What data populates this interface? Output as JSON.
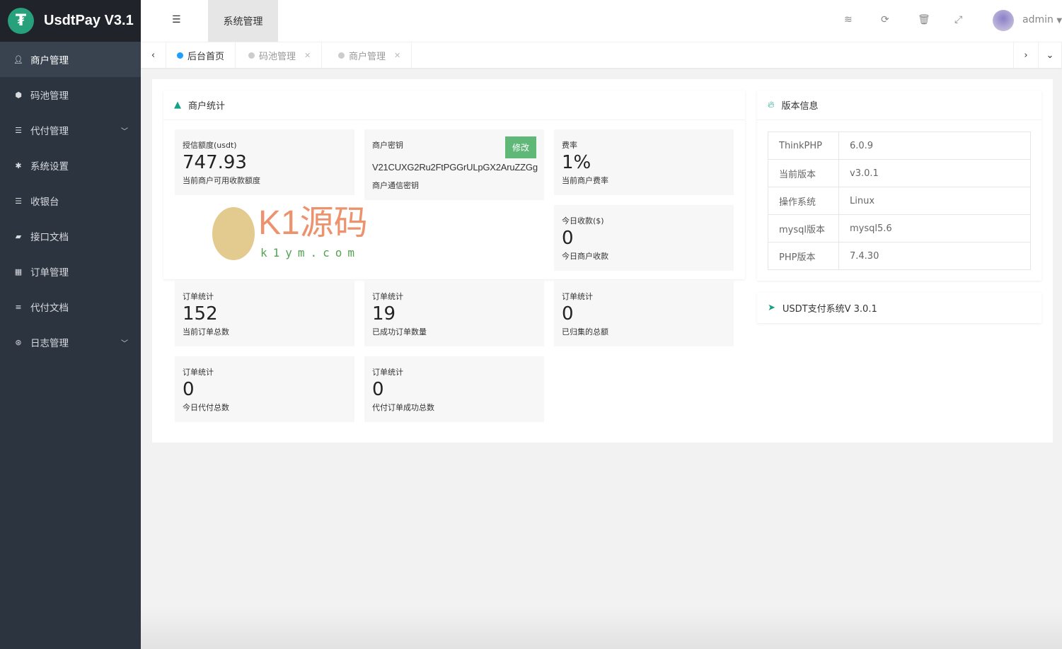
{
  "app": {
    "title": "UsdtPay V3.1",
    "logo_icon": "tether-icon"
  },
  "watermark": {
    "text": "K1源码",
    "url": "k1ym.com"
  },
  "sidebar": {
    "items": [
      {
        "label": "商户管理",
        "icon": "user-icon",
        "active": true
      },
      {
        "label": "码池管理",
        "icon": "android-icon"
      },
      {
        "label": "代付管理",
        "icon": "list-icon",
        "expandable": true
      },
      {
        "label": "系统设置",
        "icon": "gear-icon"
      },
      {
        "label": "收银台",
        "icon": "list-icon"
      },
      {
        "label": "接口文档",
        "icon": "book-icon"
      },
      {
        "label": "订单管理",
        "icon": "calculator-icon"
      },
      {
        "label": "代付文档",
        "icon": "align-icon"
      },
      {
        "label": "日志管理",
        "icon": "globe-icon",
        "expandable": true
      }
    ]
  },
  "header": {
    "system_tab": "系统管理",
    "user": "admin"
  },
  "tabs": [
    {
      "label": "后台首页",
      "active": true
    },
    {
      "label": "码池管理"
    },
    {
      "label": "商户管理"
    }
  ],
  "merchant_stats": {
    "title": "商户统计",
    "credit": {
      "label": "授信额度(usdt)",
      "value": "747.93",
      "desc": "当前商户可用收款额度"
    },
    "key": {
      "label": "商户密钥",
      "value": "V21CUXG2Ru2FtPGGrULpGX2AruZZGg",
      "desc": "商户通信密钥",
      "button": "修改"
    },
    "rate": {
      "label": "费率",
      "value": "1%",
      "desc": "当前商户费率"
    },
    "today": {
      "label": "今日收款($)",
      "value": "0",
      "desc": "今日商户收款"
    }
  },
  "order_stats": [
    {
      "label": "订单统计",
      "value": "152",
      "desc": "当前订单总数"
    },
    {
      "label": "订单统计",
      "value": "19",
      "desc": "已成功订单数量"
    },
    {
      "label": "订单统计",
      "value": "0",
      "desc": "已归集的总额"
    },
    {
      "label": "订单统计",
      "value": "0",
      "desc": "今日代付总数"
    },
    {
      "label": "订单统计",
      "value": "0",
      "desc": "代付订单成功总数"
    }
  ],
  "version": {
    "title": "版本信息",
    "rows": [
      [
        "ThinkPHP",
        "6.0.9"
      ],
      [
        "当前版本",
        "v3.0.1"
      ],
      [
        "操作系统",
        "Linux"
      ],
      [
        "mysql版本",
        "mysql5.6"
      ],
      [
        "PHP版本",
        "7.4.30"
      ]
    ]
  },
  "footer_card": {
    "label": "USDT支付系统V 3.0.1"
  },
  "colors": {
    "sidebar": "#2c3440",
    "accent": "#16a085",
    "button": "#5fb878",
    "active_tab_dot": "#1e9fff"
  }
}
